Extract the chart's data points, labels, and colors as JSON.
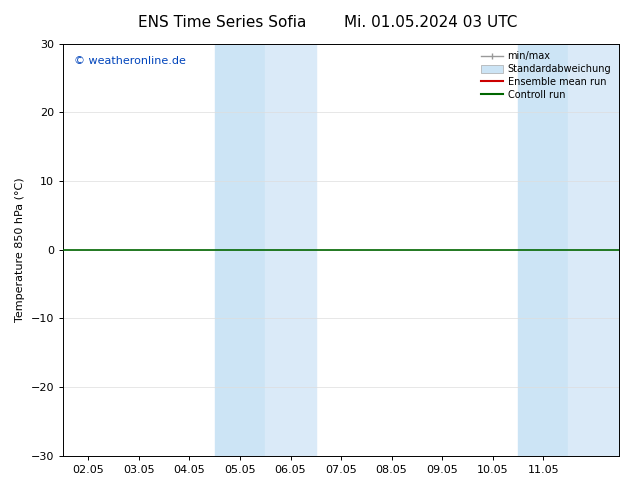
{
  "title_left": "ENS Time Series Sofia",
  "title_right": "Mi. 01.05.2024 03 UTC",
  "ylabel": "Temperature 850 hPa (°C)",
  "ylim": [
    -30,
    30
  ],
  "yticks": [
    -30,
    -20,
    -10,
    0,
    10,
    20,
    30
  ],
  "xmin": 1.0,
  "xmax": 11.0,
  "xtick_positions": [
    1,
    2,
    3,
    4,
    5,
    6,
    7,
    8,
    9,
    10
  ],
  "xtick_labels": [
    "02.05",
    "03.05",
    "04.05",
    "05.05",
    "06.05",
    "07.05",
    "08.05",
    "09.05",
    "10.05",
    "11.05"
  ],
  "watermark": "© weatheronline.de",
  "watermark_color": "#0044bb",
  "bg_color": "#ffffff",
  "plot_bg_color": "#ffffff",
  "shaded_bands": [
    {
      "xmin": 3.5,
      "xmax": 4.5,
      "color": "#cce4f5"
    },
    {
      "xmin": 4.5,
      "xmax": 5.5,
      "color": "#daeaf8"
    },
    {
      "xmin": 9.5,
      "xmax": 10.5,
      "color": "#cce4f5"
    },
    {
      "xmin": 10.5,
      "xmax": 11.5,
      "color": "#daeaf8"
    }
  ],
  "zero_line_color": "#006600",
  "zero_line_y": 0,
  "title_fontsize": 11,
  "axis_fontsize": 8,
  "tick_fontsize": 8
}
